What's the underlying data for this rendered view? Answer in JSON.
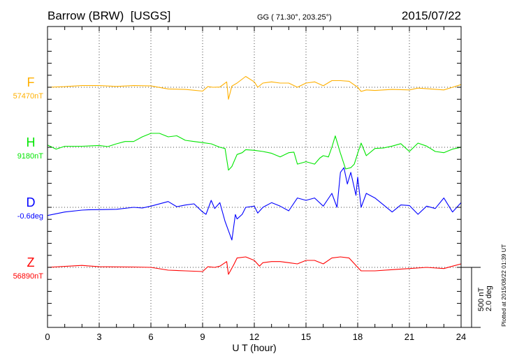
{
  "header": {
    "station": "Barrow (BRW)  [USGS]",
    "coords": "GG ( 71.30°, 203.25°)",
    "date": "2015/07/22"
  },
  "footer": {
    "plotted": "Plotted at 2015/08/22 01:39 UT"
  },
  "scale_bar": {
    "nt": "500 nT",
    "deg": "2.0 deg",
    "nt_value": 500
  },
  "colors": {
    "F": "#ffb000",
    "H": "#00e600",
    "D": "#0000ff",
    "Z": "#ff0000",
    "axis": "#000000",
    "grid": "#555555"
  },
  "chart_data": {
    "type": "line",
    "title": "Barrow (BRW)  [USGS]",
    "xlabel": "U T (hour)",
    "ylabel": "",
    "xlim": [
      0,
      24
    ],
    "xticks": [
      "0",
      "3",
      "6",
      "9",
      "12",
      "15",
      "18",
      "21",
      "24"
    ],
    "xtick_values": [
      0,
      3,
      6,
      9,
      12,
      15,
      18,
      21,
      24
    ],
    "grid": true,
    "y_units": "nT deviation from baseline (D: 500 nT ≙ 2.0 deg)",
    "series": [
      {
        "key": "F",
        "name": "F",
        "baseline": "57470nT",
        "points": [
          [
            0,
            0
          ],
          [
            1,
            5
          ],
          [
            2,
            14
          ],
          [
            3,
            14
          ],
          [
            4,
            7
          ],
          [
            5,
            14
          ],
          [
            6,
            11
          ],
          [
            7,
            -14
          ],
          [
            8,
            -18
          ],
          [
            9,
            -32
          ],
          [
            9.3,
            5
          ],
          [
            9.6,
            0
          ],
          [
            10,
            2
          ],
          [
            10.4,
            45
          ],
          [
            10.5,
            -100
          ],
          [
            10.7,
            10
          ],
          [
            11,
            35
          ],
          [
            11.5,
            90
          ],
          [
            12,
            45
          ],
          [
            12.2,
            0
          ],
          [
            12.5,
            35
          ],
          [
            13,
            45
          ],
          [
            13.5,
            35
          ],
          [
            14,
            35
          ],
          [
            14.5,
            0
          ],
          [
            15,
            35
          ],
          [
            15.5,
            45
          ],
          [
            16,
            12
          ],
          [
            16.5,
            55
          ],
          [
            17,
            55
          ],
          [
            17.5,
            50
          ],
          [
            18,
            0
          ],
          [
            18.2,
            -35
          ],
          [
            18.5,
            -22
          ],
          [
            19,
            -27
          ],
          [
            20,
            -18
          ],
          [
            21,
            -22
          ],
          [
            21.5,
            -7
          ],
          [
            22,
            -12
          ],
          [
            23,
            -22
          ],
          [
            23.5,
            0
          ],
          [
            24,
            22
          ]
        ]
      },
      {
        "key": "H",
        "name": "H",
        "baseline": "9180nT",
        "points": [
          [
            0,
            19
          ],
          [
            0.5,
            -15
          ],
          [
            1,
            9
          ],
          [
            2,
            9
          ],
          [
            3,
            15
          ],
          [
            3.5,
            6
          ],
          [
            4,
            29
          ],
          [
            4.5,
            48
          ],
          [
            5,
            48
          ],
          [
            5.5,
            87
          ],
          [
            6,
            116
          ],
          [
            6.5,
            116
          ],
          [
            7,
            87
          ],
          [
            7.5,
            96
          ],
          [
            8,
            58
          ],
          [
            8.5,
            48
          ],
          [
            9,
            39
          ],
          [
            9.5,
            29
          ],
          [
            10,
            0
          ],
          [
            10.3,
            -10
          ],
          [
            10.5,
            -190
          ],
          [
            10.7,
            -160
          ],
          [
            11,
            -60
          ],
          [
            11.3,
            -45
          ],
          [
            11.5,
            -20
          ],
          [
            12,
            -25
          ],
          [
            12.5,
            -35
          ],
          [
            13,
            -50
          ],
          [
            13.5,
            -80
          ],
          [
            14,
            -45
          ],
          [
            14.3,
            -40
          ],
          [
            14.5,
            -140
          ],
          [
            15,
            -120
          ],
          [
            15.5,
            -140
          ],
          [
            15.8,
            -90
          ],
          [
            16,
            -70
          ],
          [
            16.3,
            -80
          ],
          [
            16.5,
            0
          ],
          [
            16.7,
            95
          ],
          [
            17,
            -50
          ],
          [
            17.3,
            -180
          ],
          [
            17.6,
            -170
          ],
          [
            17.8,
            -140
          ],
          [
            18,
            -50
          ],
          [
            18.2,
            35
          ],
          [
            18.5,
            -70
          ],
          [
            19,
            -10
          ],
          [
            19.5,
            -5
          ],
          [
            20,
            10
          ],
          [
            20.5,
            30
          ],
          [
            21,
            -35
          ],
          [
            21.5,
            35
          ],
          [
            22,
            10
          ],
          [
            22.5,
            -35
          ],
          [
            23,
            -45
          ],
          [
            23.5,
            -15
          ],
          [
            24,
            0
          ]
        ]
      },
      {
        "key": "D",
        "name": "D",
        "baseline": "-0.6deg",
        "points": [
          [
            0,
            -68
          ],
          [
            1,
            -39
          ],
          [
            2,
            -23
          ],
          [
            2.5,
            -20
          ],
          [
            3,
            -19
          ],
          [
            4,
            -16
          ],
          [
            5,
            0
          ],
          [
            5.5,
            -5
          ],
          [
            6,
            10
          ],
          [
            7,
            48
          ],
          [
            7.5,
            5
          ],
          [
            8,
            19
          ],
          [
            8.5,
            29
          ],
          [
            9,
            -39
          ],
          [
            9.2,
            -58
          ],
          [
            9.5,
            58
          ],
          [
            9.7,
            -10
          ],
          [
            10,
            39
          ],
          [
            10.3,
            -116
          ],
          [
            10.5,
            -194
          ],
          [
            10.7,
            -272
          ],
          [
            10.9,
            -60
          ],
          [
            11,
            -97
          ],
          [
            11.3,
            -58
          ],
          [
            11.5,
            0
          ],
          [
            12,
            10
          ],
          [
            12.2,
            -48
          ],
          [
            12.5,
            0
          ],
          [
            13,
            39
          ],
          [
            13.5,
            10
          ],
          [
            14,
            -29
          ],
          [
            14.5,
            78
          ],
          [
            15,
            58
          ],
          [
            15.5,
            78
          ],
          [
            16,
            10
          ],
          [
            16.5,
            116
          ],
          [
            16.8,
            0
          ],
          [
            17,
            291
          ],
          [
            17.2,
            330
          ],
          [
            17.4,
            194
          ],
          [
            17.6,
            291
          ],
          [
            17.9,
            100
          ],
          [
            18,
            252
          ],
          [
            18.2,
            0
          ],
          [
            18.5,
            116
          ],
          [
            19,
            78
          ],
          [
            19.5,
            20
          ],
          [
            20,
            -39
          ],
          [
            20.5,
            20
          ],
          [
            21,
            15
          ],
          [
            21.5,
            -58
          ],
          [
            22,
            10
          ],
          [
            22.5,
            -10
          ],
          [
            23,
            78
          ],
          [
            23.5,
            -39
          ],
          [
            24,
            39
          ]
        ]
      },
      {
        "key": "Z",
        "name": "Z",
        "baseline": "56890nT",
        "points": [
          [
            0,
            0
          ],
          [
            2,
            16
          ],
          [
            3,
            5
          ],
          [
            5,
            3
          ],
          [
            6,
            0
          ],
          [
            7,
            -23
          ],
          [
            8,
            -29
          ],
          [
            9,
            -35
          ],
          [
            9.3,
            5
          ],
          [
            9.7,
            0
          ],
          [
            10,
            10
          ],
          [
            10.4,
            48
          ],
          [
            10.5,
            -58
          ],
          [
            10.8,
            20
          ],
          [
            11,
            78
          ],
          [
            11.5,
            87
          ],
          [
            12,
            58
          ],
          [
            12.3,
            10
          ],
          [
            12.5,
            39
          ],
          [
            13,
            48
          ],
          [
            13.5,
            48
          ],
          [
            14,
            39
          ],
          [
            14.5,
            29
          ],
          [
            15,
            58
          ],
          [
            15.5,
            58
          ],
          [
            16,
            29
          ],
          [
            16.5,
            78
          ],
          [
            17,
            87
          ],
          [
            17.5,
            78
          ],
          [
            18,
            0
          ],
          [
            18.2,
            -29
          ],
          [
            19,
            -29
          ],
          [
            20,
            -19
          ],
          [
            21,
            -10
          ],
          [
            22,
            0
          ],
          [
            23,
            -10
          ],
          [
            23.5,
            10
          ],
          [
            24,
            29
          ]
        ]
      }
    ]
  }
}
